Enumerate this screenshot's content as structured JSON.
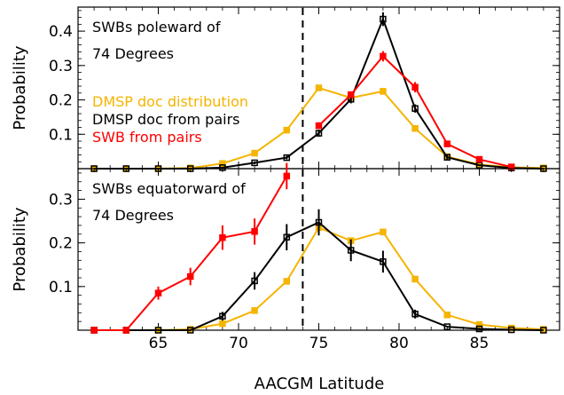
{
  "chart_data": [
    {
      "type": "line",
      "panel": "top",
      "xlabel": "AACGM Latitude",
      "ylabel": "Probability",
      "xlim": [
        60,
        90
      ],
      "ylim": [
        0,
        0.47
      ],
      "yticks": [
        0.1,
        0.2,
        0.3,
        0.4
      ],
      "ytick_labels": [
        "0.1",
        "0.2",
        "0.3",
        "0.4"
      ],
      "xticks": [
        65,
        70,
        75,
        80,
        85
      ],
      "xtick_labels": [],
      "vline_x": 74,
      "annotation": [
        "SWBs poleward of",
        "74 Degrees"
      ],
      "legend": [
        "DMSP doc distribution",
        "DMSP doc from pairs",
        "SWB from pairs"
      ],
      "series": [
        {
          "name": "DMSP doc distribution",
          "color": "#f5b400",
          "x": [
            61,
            63,
            65,
            67,
            69,
            71,
            73,
            75,
            77,
            79,
            81,
            83,
            85,
            87,
            89
          ],
          "y": [
            0.0,
            0.0,
            0.0,
            0.002,
            0.015,
            0.045,
            0.112,
            0.235,
            0.206,
            0.225,
            0.117,
            0.035,
            0.012,
            0.004,
            0.002
          ],
          "err": null
        },
        {
          "name": "DMSP doc from pairs",
          "color": "#000000",
          "x": [
            61,
            63,
            65,
            67,
            69,
            71,
            73,
            75,
            77,
            79,
            81,
            83,
            85,
            87,
            89
          ],
          "y": [
            0.0,
            0.0,
            0.0,
            0.0,
            0.003,
            0.017,
            0.032,
            0.103,
            0.202,
            0.435,
            0.175,
            0.033,
            0.01,
            0.002,
            0.0
          ],
          "err": [
            0,
            0,
            0,
            0,
            0,
            0.004,
            0.005,
            0.01,
            0.012,
            0.02,
            0.012,
            0.006,
            0,
            0,
            0
          ]
        },
        {
          "name": "SWB from pairs",
          "color": "#ff0000",
          "x": [
            75,
            77,
            79,
            81,
            83,
            85,
            87
          ],
          "y": [
            0.125,
            0.215,
            0.327,
            0.237,
            0.072,
            0.027,
            0.005
          ],
          "err": [
            0.01,
            0.01,
            0.015,
            0.015,
            0.006,
            0.004,
            0
          ]
        }
      ]
    },
    {
      "type": "line",
      "panel": "bottom",
      "xlabel": "AACGM Latitude",
      "ylabel": "Probability",
      "xlim": [
        60,
        90
      ],
      "ylim": [
        0,
        0.37
      ],
      "yticks": [
        0.1,
        0.2,
        0.3
      ],
      "ytick_labels": [
        "0.1",
        "0.2",
        "0.3"
      ],
      "xticks": [
        65,
        70,
        75,
        80,
        85
      ],
      "xtick_labels": [
        "65",
        "70",
        "75",
        "80",
        "85"
      ],
      "vline_x": 74,
      "annotation": [
        "SWBs equatorward of",
        "74 Degrees"
      ],
      "series": [
        {
          "name": "DMSP doc distribution",
          "color": "#f5b400",
          "x": [
            61,
            63,
            65,
            67,
            69,
            71,
            73,
            75,
            77,
            79,
            81,
            83,
            85,
            87,
            89
          ],
          "y": [
            0.0,
            0.0,
            0.0,
            0.002,
            0.015,
            0.045,
            0.112,
            0.235,
            0.205,
            0.225,
            0.117,
            0.035,
            0.013,
            0.005,
            0.002
          ],
          "err": null
        },
        {
          "name": "DMSP doc from pairs",
          "color": "#000000",
          "x": [
            61,
            63,
            65,
            67,
            69,
            71,
            73,
            75,
            77,
            79,
            81,
            83,
            85,
            87,
            89
          ],
          "y": [
            0.0,
            0.0,
            0.0,
            0.0,
            0.032,
            0.113,
            0.213,
            0.247,
            0.183,
            0.157,
            0.037,
            0.008,
            0.003,
            0.001,
            0.0
          ],
          "err": [
            0,
            0,
            0,
            0,
            0.01,
            0.02,
            0.03,
            0.03,
            0.025,
            0.025,
            0.01,
            0,
            0,
            0,
            0
          ]
        },
        {
          "name": "SWB from pairs",
          "color": "#ff0000",
          "x": [
            61,
            63,
            65,
            67,
            69,
            71,
            73
          ],
          "y": [
            0.0,
            0.0,
            0.085,
            0.123,
            0.212,
            0.226,
            0.353
          ],
          "err": [
            0,
            0,
            0.015,
            0.02,
            0.028,
            0.03,
            0.03
          ]
        }
      ]
    }
  ]
}
